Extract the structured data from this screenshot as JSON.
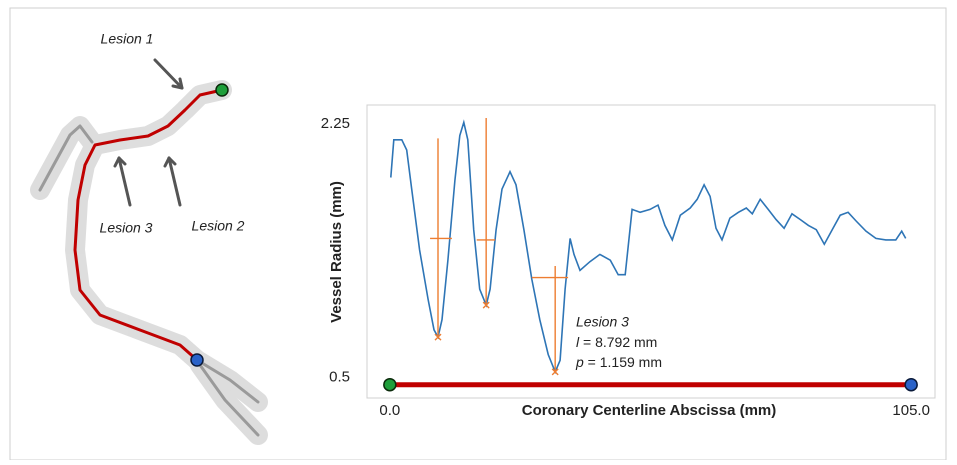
{
  "illustration": {
    "labels": [
      "Lesion 1",
      "Lesion 2",
      "Lesion 3"
    ]
  },
  "chart_data": {
    "type": "line",
    "x_label": "Coronary Centerline Abscissa (mm)",
    "y_label": "Vessel Radius (mm)",
    "xlim": [
      -4.6,
      109.8
    ],
    "ylim": [
      0.36,
      2.38
    ],
    "xticks": [
      {
        "value": 0,
        "label": "0.0"
      },
      {
        "value": 105,
        "label": "105.0"
      }
    ],
    "yticks": [
      0.5,
      2.25
    ],
    "series": [
      {
        "color": "#2e75b6",
        "x": [
          0.2,
          0.8,
          2.4,
          3.4,
          4.4,
          6.0,
          7.7,
          8.9,
          9.7,
          10.5,
          11.7,
          13.1,
          14.1,
          14.9,
          15.7,
          16.9,
          18.1,
          19.4,
          20.2,
          21.4,
          22.6,
          24.2,
          25.4,
          27.0,
          28.6,
          30.2,
          31.9,
          33.3,
          34.3,
          35.3,
          36.3,
          37.1,
          38.3,
          40.3,
          42.3,
          44.4,
          46.0,
          47.4,
          48.8,
          50.4,
          52.4,
          54.0,
          55.4,
          56.9,
          58.5,
          60.5,
          61.9,
          63.3,
          64.5,
          65.7,
          66.9,
          68.5,
          70.2,
          71.8,
          73.0,
          74.6,
          76.2,
          77.8,
          79.4,
          81.0,
          82.7,
          84.3,
          85.9,
          87.5,
          89.1,
          90.7,
          92.3,
          93.9,
          95.9,
          97.9,
          99.9,
          101.9,
          103.1,
          103.9
        ],
        "values": [
          1.88,
          2.14,
          2.14,
          2.07,
          1.8,
          1.38,
          1.04,
          0.83,
          0.78,
          0.9,
          1.31,
          1.86,
          2.17,
          2.26,
          2.14,
          1.52,
          1.11,
          1.0,
          1.11,
          1.52,
          1.8,
          1.92,
          1.83,
          1.52,
          1.18,
          0.9,
          0.66,
          0.54,
          0.62,
          1.11,
          1.46,
          1.35,
          1.24,
          1.3,
          1.35,
          1.31,
          1.21,
          1.21,
          1.66,
          1.64,
          1.66,
          1.69,
          1.55,
          1.45,
          1.62,
          1.67,
          1.73,
          1.83,
          1.75,
          1.53,
          1.45,
          1.6,
          1.64,
          1.67,
          1.63,
          1.73,
          1.66,
          1.59,
          1.53,
          1.63,
          1.59,
          1.55,
          1.52,
          1.42,
          1.52,
          1.62,
          1.64,
          1.58,
          1.51,
          1.46,
          1.45,
          1.45,
          1.51,
          1.46
        ]
      }
    ],
    "lesion_markers": {
      "color": "#ed7d31",
      "items": [
        {
          "x": 9.7,
          "y_min": 0.78,
          "y_max": 2.15,
          "y_bar": 1.46,
          "x_left": 8.1,
          "x_right": 12.5
        },
        {
          "x": 19.4,
          "y_min": 1.0,
          "y_max": 2.29,
          "y_bar": 1.45,
          "x_left": 17.5,
          "x_right": 21.2
        },
        {
          "x": 33.3,
          "y_min": 0.54,
          "y_max": 1.27,
          "y_bar": 1.19,
          "x_left": 28.6,
          "x_right": 35.9
        }
      ]
    },
    "annotation": {
      "title": "Lesion 3",
      "lines": [
        {
          "symbol": "l",
          "text": " = 8.792 mm"
        },
        {
          "symbol": "p",
          "text": " = 1.159 mm"
        }
      ]
    }
  }
}
